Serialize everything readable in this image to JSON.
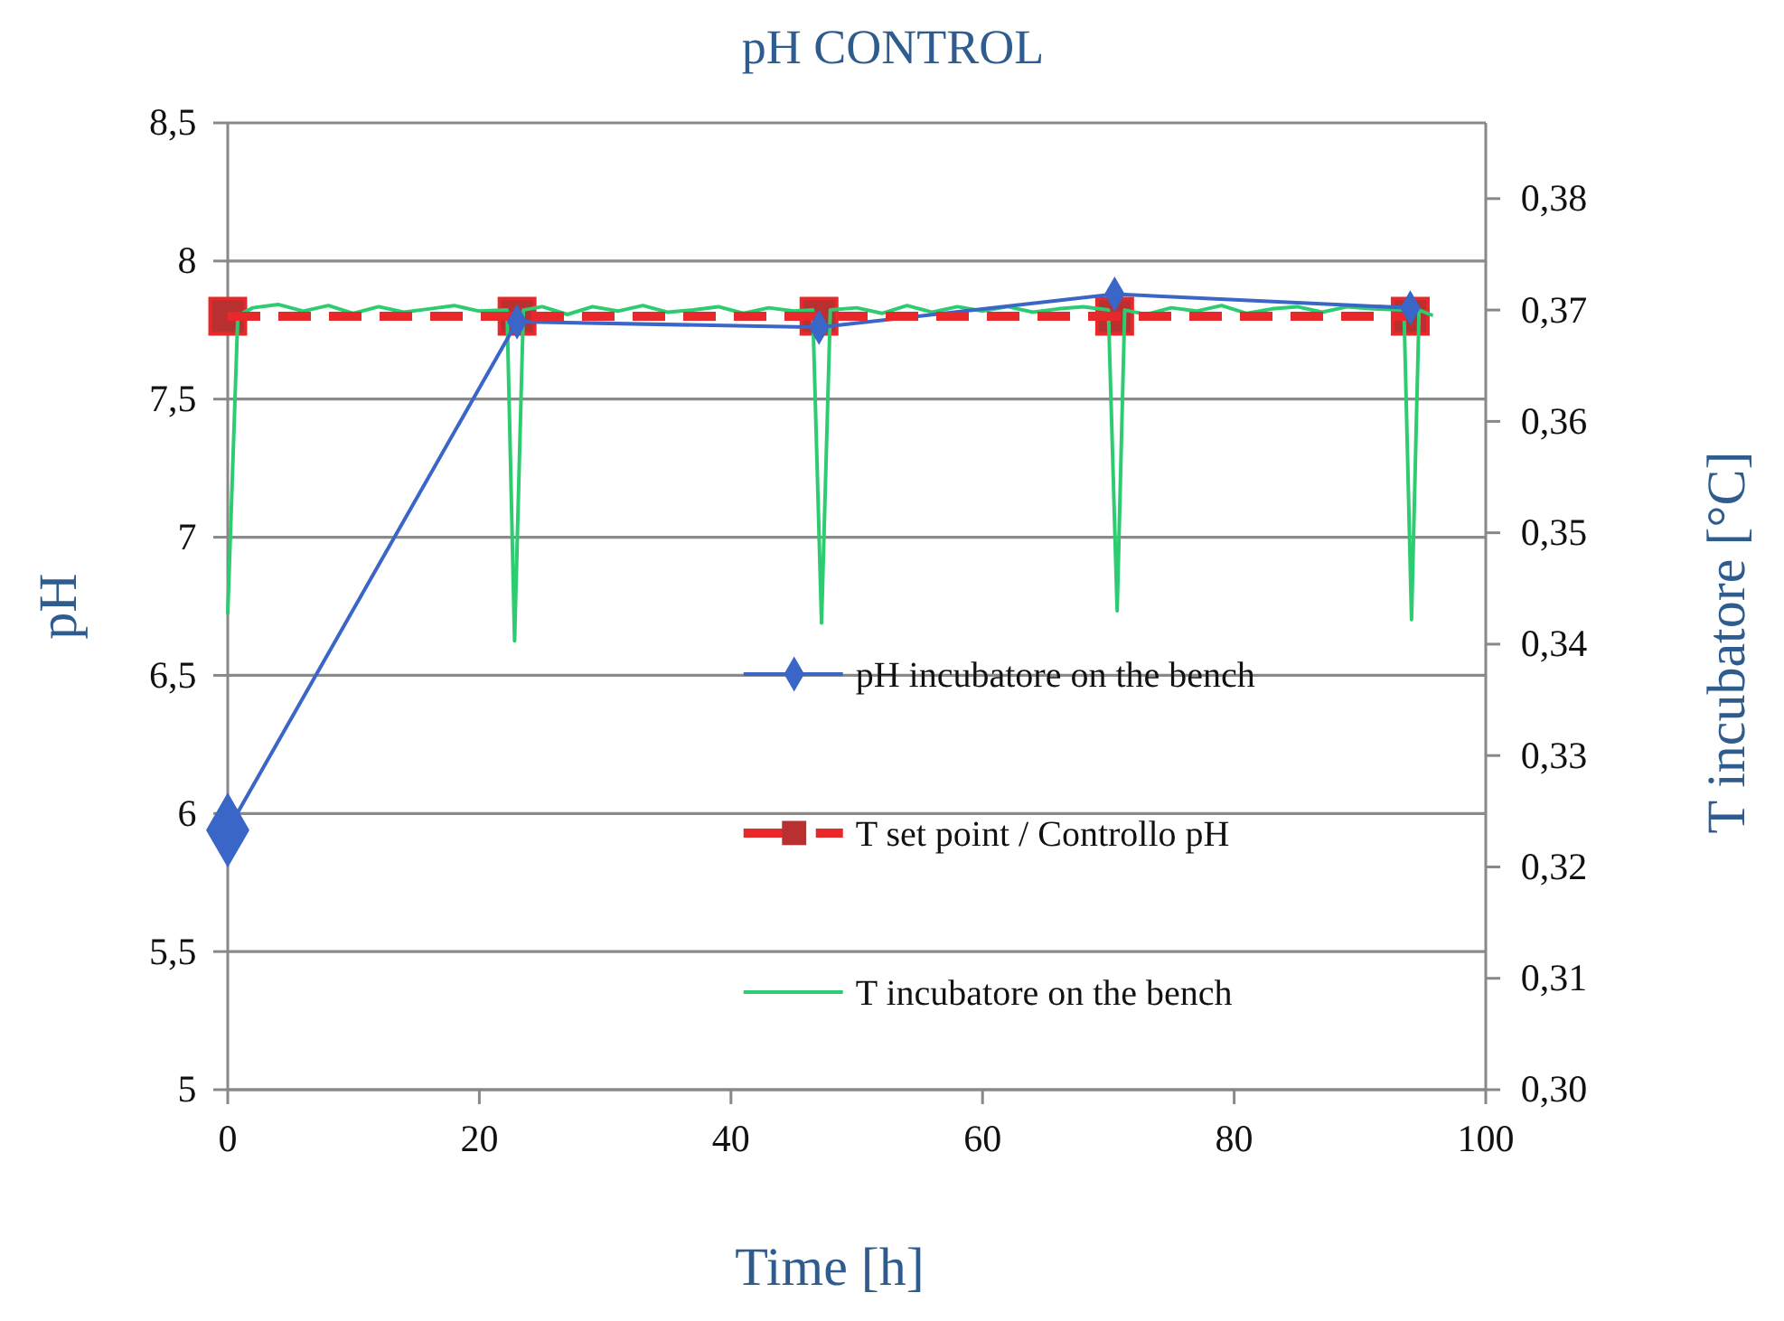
{
  "chart_data": {
    "type": "line",
    "title": "pH CONTROL",
    "xlabel": "Time [h]",
    "ylabel": "pH",
    "y2label": "T incubatore [°C]",
    "xlim": [
      0,
      100
    ],
    "xticks": [
      0,
      20,
      40,
      60,
      80,
      100
    ],
    "ylim": [
      5,
      8.5
    ],
    "yticks": [
      {
        "value": 5,
        "label": "5"
      },
      {
        "value": 5.5,
        "label": "5,5"
      },
      {
        "value": 6,
        "label": "6"
      },
      {
        "value": 6.5,
        "label": "6,5"
      },
      {
        "value": 7,
        "label": "7"
      },
      {
        "value": 7.5,
        "label": "7,5"
      },
      {
        "value": 8,
        "label": "8"
      },
      {
        "value": 8.5,
        "label": "8,5"
      }
    ],
    "y2lim": [
      0.3,
      0.3868
    ],
    "y2ticks": [
      {
        "value": 0.3,
        "label": "0,30"
      },
      {
        "value": 0.31,
        "label": "0,31"
      },
      {
        "value": 0.32,
        "label": "0,32"
      },
      {
        "value": 0.33,
        "label": "0,33"
      },
      {
        "value": 0.34,
        "label": "0,34"
      },
      {
        "value": 0.35,
        "label": "0,35"
      },
      {
        "value": 0.36,
        "label": "0,36"
      },
      {
        "value": 0.37,
        "label": "0,37"
      },
      {
        "value": 0.38,
        "label": "0,38"
      }
    ],
    "grid": "y",
    "legend": "right",
    "series": [
      {
        "name": "pH incubatore on the bench",
        "color": "#3a66c8",
        "marker": "diamond",
        "line_style": "solid",
        "x": [
          0,
          23,
          47,
          70.5,
          94
        ],
        "values": [
          5.94,
          7.78,
          7.76,
          7.88,
          7.83
        ]
      },
      {
        "name": "T set point / Controllo pH",
        "color": "#e8282a",
        "marker": "square",
        "line_style": "dashed",
        "x": [
          0,
          23,
          47,
          70.5,
          94
        ],
        "values": [
          7.8,
          7.8,
          7.8,
          7.8,
          7.8
        ]
      },
      {
        "name": "T incubatore on the bench",
        "color": "#2ecc71",
        "marker": "none",
        "line_style": "solid",
        "axis": "y2",
        "x": [
          0,
          0.8,
          2,
          4,
          6,
          8,
          10,
          12,
          14,
          16,
          18,
          20,
          22.2,
          22.8,
          23.5,
          25,
          27,
          29,
          31,
          33,
          35,
          37,
          39,
          41,
          43,
          45,
          46.5,
          47.2,
          47.9,
          50,
          52,
          54,
          56,
          58,
          60,
          62,
          64,
          66,
          68,
          70,
          70.7,
          71.3,
          73,
          75,
          77,
          79,
          81,
          83,
          85,
          87,
          89,
          91,
          93.5,
          94.1,
          94.7,
          95.8
        ],
        "values": [
          0.3427,
          0.3695,
          0.3702,
          0.3705,
          0.3699,
          0.3704,
          0.3697,
          0.3703,
          0.3698,
          0.3701,
          0.3704,
          0.3699,
          0.37,
          0.3403,
          0.37,
          0.3703,
          0.3696,
          0.3703,
          0.3699,
          0.3704,
          0.3698,
          0.37,
          0.3703,
          0.3697,
          0.3702,
          0.3699,
          0.37,
          0.3419,
          0.37,
          0.3702,
          0.3697,
          0.3704,
          0.3698,
          0.3703,
          0.3699,
          0.3703,
          0.3698,
          0.3701,
          0.3703,
          0.37,
          0.343,
          0.37,
          0.3696,
          0.3702,
          0.3699,
          0.3704,
          0.3697,
          0.3701,
          0.3703,
          0.3698,
          0.3703,
          0.3701,
          0.37,
          0.3422,
          0.37,
          0.3695
        ]
      }
    ]
  }
}
